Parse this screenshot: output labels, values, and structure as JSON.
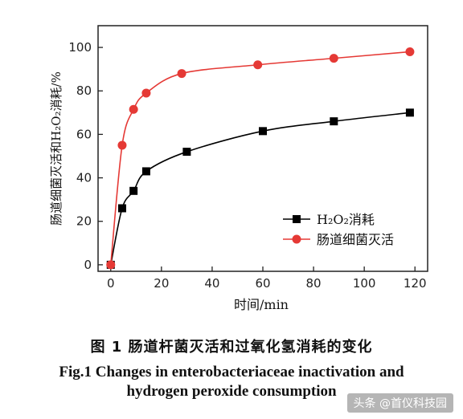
{
  "chart_data": {
    "type": "line",
    "xlabel": "时间/min",
    "ylabel": "肠道细菌灭活和H₂O₂消耗/%",
    "xlim": [
      -5,
      125
    ],
    "ylim": [
      -3,
      110
    ],
    "xticks": [
      "0",
      "20",
      "40",
      "60",
      "80",
      "100",
      "120"
    ],
    "yticks": [
      "0",
      "20",
      "40",
      "60",
      "80",
      "100"
    ],
    "legend_position": "bottom-right",
    "series": [
      {
        "name": "H₂O₂消耗",
        "marker": "square",
        "color": "#000000",
        "x": [
          0,
          4.5,
          9,
          14,
          30,
          60,
          88,
          118
        ],
        "y": [
          0,
          26,
          34,
          43,
          52,
          61.5,
          66,
          70
        ]
      },
      {
        "name": "肠道细菌灭活",
        "marker": "circle",
        "color": "#e53935",
        "x": [
          0,
          4.5,
          9,
          14,
          28,
          58,
          88,
          118
        ],
        "y": [
          0,
          55,
          71.5,
          79,
          88,
          92,
          95,
          98
        ]
      }
    ]
  },
  "caption": {
    "chinese": "图 1    肠道杆菌灭活和过氧化氢消耗的变化",
    "english_line1": "Fig.1 Changes in enterobacteriaceae inactivation and",
    "english_line2": "hydrogen peroxide consumption"
  },
  "watermark": "头条 @首仪科技园"
}
